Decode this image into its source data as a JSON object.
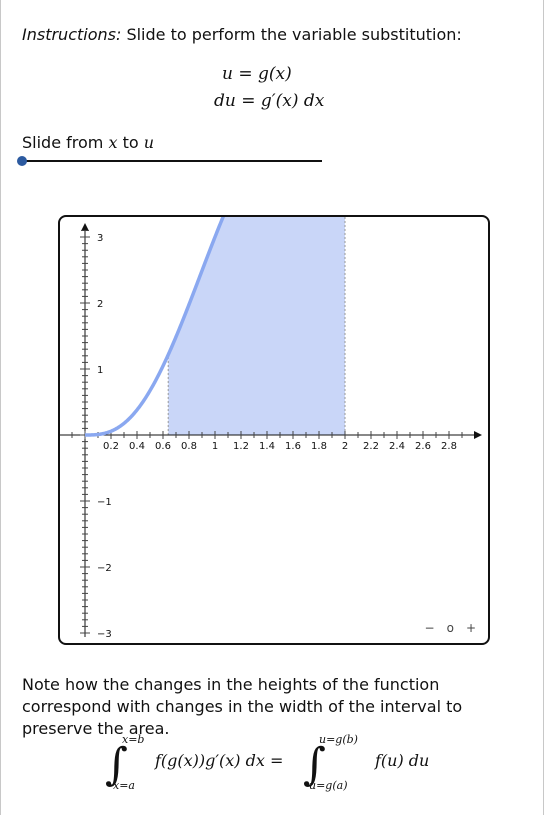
{
  "instructions": {
    "prefix": "Instructions:",
    "text": " Slide to perform the variable substitution:"
  },
  "equations": {
    "line1": "u = g(x)",
    "line2": "du = g′(x) dx"
  },
  "slider": {
    "label_prefix": "Slide from ",
    "var_x": "x",
    "label_mid": " to ",
    "var_u": "u",
    "value": 0
  },
  "graph": {
    "x_ticks": [
      "0.2",
      "0.4",
      "0.6",
      "0.8",
      "1",
      "1.2",
      "1.4",
      "1.6",
      "1.8",
      "2",
      "2.2",
      "2.4",
      "2.6",
      "2.8"
    ],
    "y_ticks": [
      "3",
      "2",
      "1",
      "−1",
      "−2",
      "−3"
    ],
    "shade_from": 0.64,
    "shade_to": 2.0,
    "curve_color": "#8aa8f0",
    "fill_color": "#c9d6f8",
    "zoom": {
      "minus": "−",
      "reset": "o",
      "plus": "+"
    }
  },
  "note": "Note how the changes in the heights of the function correspond with changes in the width of the interval to preserve the area.",
  "formula": {
    "left_upper": "x=b",
    "left_lower": "x=a",
    "left_body": "f(g(x))g′(x) dx =",
    "right_upper": "u=g(b)",
    "right_lower": "u=g(a)",
    "right_body": "f(u) du"
  }
}
